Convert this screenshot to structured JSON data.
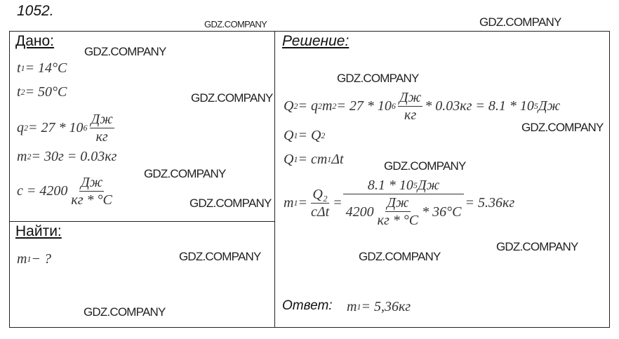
{
  "problem_number": "1052.",
  "given": {
    "heading": "Дано:",
    "equations": [
      [
        {
          "t": "t"
        },
        {
          "sub": "1"
        },
        {
          "t": " = 14°C"
        }
      ],
      [
        {
          "t": "t"
        },
        {
          "sub": "2"
        },
        {
          "t": " = 50°C"
        }
      ],
      [
        {
          "t": "q"
        },
        {
          "sub": "2"
        },
        {
          "t": " = 27 * 10"
        },
        {
          "sup": "6"
        },
        {
          "frac": [
            "Дж",
            "кг"
          ]
        }
      ],
      [
        {
          "t": "m"
        },
        {
          "sub": "2"
        },
        {
          "t": " = 30г = 0.03кг"
        }
      ],
      [
        {
          "t": "c = 4200"
        },
        {
          "frac": [
            "Дж",
            "кг * °C"
          ]
        }
      ]
    ]
  },
  "find": {
    "heading": "Найти:",
    "equations": [
      [
        {
          "t": "m"
        },
        {
          "sub": "1"
        },
        {
          "t": " − ?"
        }
      ]
    ]
  },
  "solution": {
    "heading": "Решение:",
    "equations": [
      [
        {
          "t": "Q"
        },
        {
          "sub": "2"
        },
        {
          "t": " = q"
        },
        {
          "sub": "2"
        },
        {
          "t": "m"
        },
        {
          "sub": "2"
        },
        {
          "t": " = 27 * 10"
        },
        {
          "sup": "6"
        },
        {
          "frac": [
            "Дж",
            "кг"
          ]
        },
        {
          "t": "* 0.03кг = 8.1 * 10"
        },
        {
          "sup": "5"
        },
        {
          "t": " Дж"
        }
      ],
      [
        {
          "t": "Q"
        },
        {
          "sub": "1"
        },
        {
          "t": " = Q"
        },
        {
          "sub": "2"
        }
      ],
      [
        {
          "t": "Q"
        },
        {
          "sub": "1"
        },
        {
          "t": " = cm"
        },
        {
          "sub": "1"
        },
        {
          "t": "Δt"
        }
      ],
      [
        {
          "t": "m"
        },
        {
          "sub": "1"
        },
        {
          "t": " = "
        },
        {
          "frac": [
            "Q₂",
            "cΔt"
          ]
        },
        {
          "t": " = "
        },
        {
          "bigfrac": [
            [
              {
                "t": "8.1 * 10"
              },
              {
                "sup": "5"
              },
              {
                "t": " Дж"
              }
            ],
            [
              {
                "t": "4200"
              },
              {
                "frac": [
                  "Дж",
                  "кг * °C"
                ]
              },
              {
                "t": "* 36°C"
              }
            ]
          ]
        },
        {
          "t": " = 5.36кг"
        }
      ]
    ],
    "answer_label": "Ответ:",
    "answer": [
      {
        "t": "m"
      },
      {
        "sub": "1"
      },
      {
        "t": " = 5,36кг"
      }
    ]
  },
  "watermark": "GDZ.COMPANY"
}
